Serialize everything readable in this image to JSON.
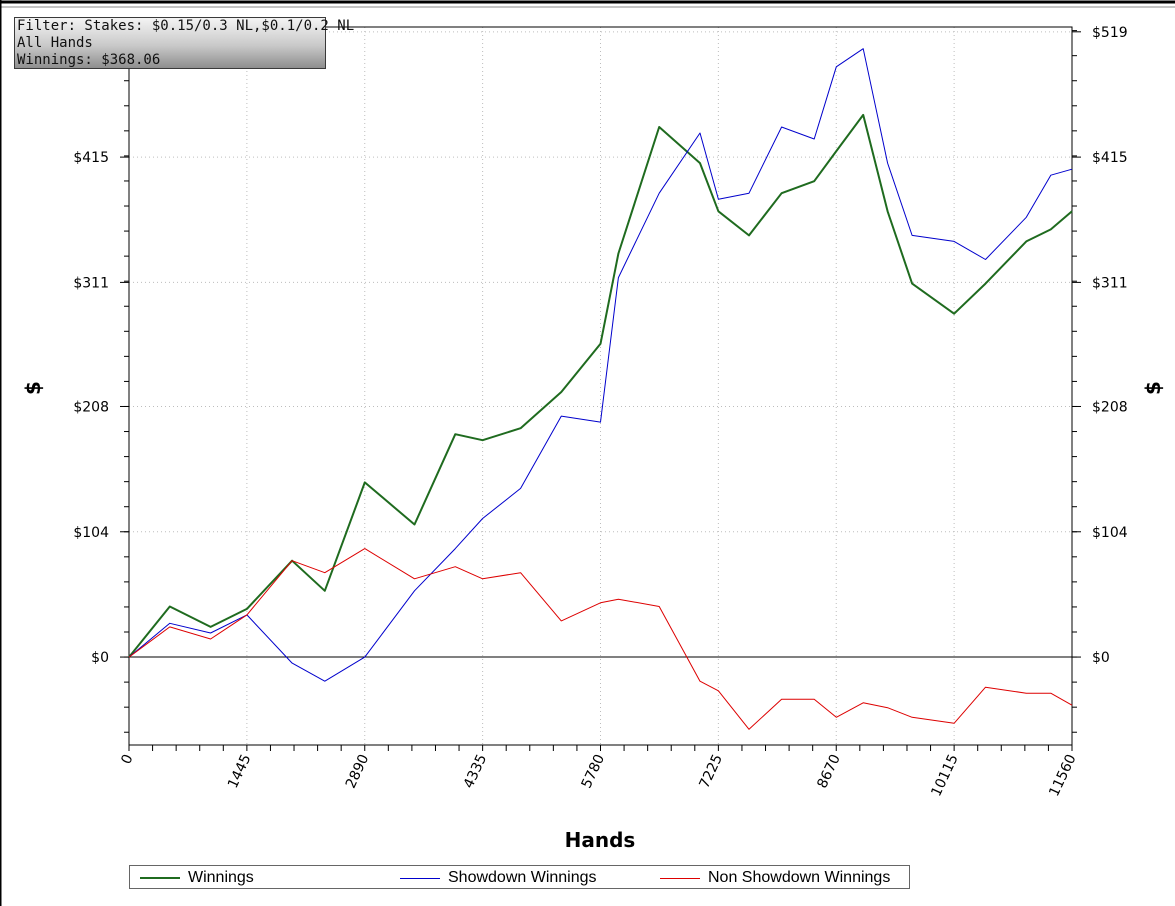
{
  "filter": {
    "line1": "Filter: Stakes: $0.15/0.3 NL,$0.1/0.2 NL",
    "line2": "All Hands",
    "line3": "Winnings: $368.06"
  },
  "colors": {
    "winnings": "#1f6b1f",
    "showdown": "#0000cc",
    "non_showdown": "#dd0000"
  },
  "chart_data": {
    "type": "line",
    "xlabel": "Hands",
    "ylabel": "$",
    "xlim": [
      0,
      11560
    ],
    "ylim": [
      -73,
      523
    ],
    "x_ticks": [
      "0",
      "1445",
      "2890",
      "4335",
      "5780",
      "7225",
      "8670",
      "10115",
      "11560"
    ],
    "y_ticks": [
      "$0",
      "$104",
      "$208",
      "$311",
      "$415",
      "$519"
    ],
    "grid": true,
    "legend_position": "bottom",
    "x": [
      0,
      500,
      1000,
      1445,
      2000,
      2400,
      2890,
      3500,
      4000,
      4335,
      4800,
      5300,
      5780,
      6000,
      6500,
      7000,
      7225,
      7600,
      8000,
      8400,
      8670,
      9000,
      9300,
      9600,
      10115,
      10500,
      11000,
      11300,
      11560
    ],
    "series": [
      {
        "name": "Winnings",
        "values": [
          0,
          42,
          25,
          40,
          80,
          55,
          145,
          110,
          185,
          180,
          190,
          220,
          260,
          335,
          440,
          410,
          370,
          350,
          385,
          395,
          420,
          450,
          370,
          310,
          285,
          310,
          345,
          355,
          370
        ]
      },
      {
        "name": "Showdown Winnings",
        "values": [
          0,
          28,
          20,
          35,
          -5,
          -20,
          0,
          55,
          90,
          115,
          140,
          200,
          195,
          315,
          385,
          435,
          380,
          385,
          440,
          430,
          490,
          505,
          410,
          350,
          345,
          330,
          365,
          400,
          405
        ]
      },
      {
        "name": "Non Showdown Winnings",
        "values": [
          0,
          25,
          15,
          35,
          80,
          70,
          90,
          65,
          75,
          65,
          70,
          30,
          45,
          48,
          42,
          -20,
          -28,
          -60,
          -35,
          -35,
          -50,
          -38,
          -42,
          -50,
          -55,
          -25,
          -30,
          -30,
          -40
        ]
      }
    ]
  }
}
